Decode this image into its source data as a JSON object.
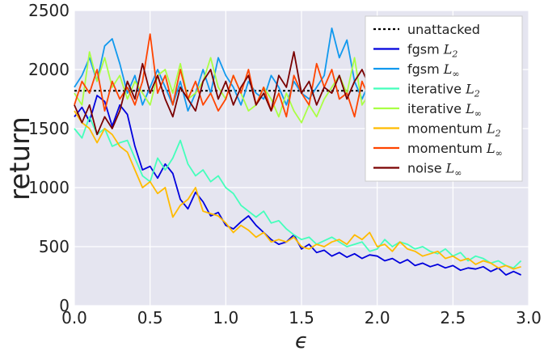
{
  "chart_data": {
    "type": "line",
    "xlabel": "ϵ",
    "ylabel": "return",
    "xlim": [
      0.0,
      3.0
    ],
    "ylim": [
      0,
      2500
    ],
    "xticks": [
      "0.0",
      "0.5",
      "1.0",
      "1.5",
      "2.0",
      "2.5",
      "3.0"
    ],
    "yticks": [
      "0",
      "500",
      "1000",
      "1500",
      "2000",
      "2500"
    ],
    "grid": true,
    "legend_position": "top-right",
    "series": [
      {
        "name": "unattacked",
        "name_main": "unattacked",
        "name_sub": "",
        "name_subsub": "",
        "color": "#000000",
        "style": "dotted",
        "x": [
          0.0,
          1.95
        ],
        "y": [
          1820,
          1820
        ]
      },
      {
        "name": "fgsm L2",
        "name_main": "fgsm ",
        "name_sub": "L",
        "name_subsub": "2",
        "color": "#0000dd",
        "style": "solid",
        "x": [
          0.0,
          0.05,
          0.1,
          0.15,
          0.2,
          0.25,
          0.3,
          0.35,
          0.4,
          0.45,
          0.5,
          0.55,
          0.6,
          0.65,
          0.7,
          0.75,
          0.8,
          0.85,
          0.9,
          0.95,
          1.0,
          1.05,
          1.1,
          1.15,
          1.2,
          1.25,
          1.3,
          1.35,
          1.4,
          1.45,
          1.5,
          1.55,
          1.6,
          1.65,
          1.7,
          1.75,
          1.8,
          1.85,
          1.9,
          1.95,
          2.0,
          2.05,
          2.1,
          2.15,
          2.2,
          2.25,
          2.3,
          2.35,
          2.4,
          2.45,
          2.5,
          2.55,
          2.6,
          2.65,
          2.7,
          2.75,
          2.8,
          2.85,
          2.9,
          2.95
        ],
        "y": [
          1600,
          1680,
          1560,
          1780,
          1730,
          1520,
          1700,
          1620,
          1350,
          1150,
          1180,
          1080,
          1200,
          1120,
          900,
          820,
          960,
          880,
          760,
          790,
          680,
          650,
          710,
          760,
          680,
          620,
          560,
          520,
          540,
          600,
          480,
          520,
          450,
          470,
          420,
          450,
          410,
          440,
          400,
          430,
          420,
          380,
          400,
          360,
          390,
          340,
          360,
          330,
          350,
          320,
          340,
          300,
          320,
          310,
          330,
          290,
          320,
          260,
          290,
          260
        ]
      },
      {
        "name": "fgsm L∞",
        "name_main": "fgsm ",
        "name_sub": "L",
        "name_subsub": "∞",
        "color": "#1199ee",
        "style": "solid",
        "x": [
          0.0,
          0.05,
          0.1,
          0.15,
          0.2,
          0.25,
          0.3,
          0.35,
          0.4,
          0.45,
          0.5,
          0.55,
          0.6,
          0.65,
          0.7,
          0.75,
          0.8,
          0.85,
          0.9,
          0.95,
          1.0,
          1.05,
          1.1,
          1.15,
          1.2,
          1.25,
          1.3,
          1.35,
          1.4,
          1.45,
          1.5,
          1.55,
          1.6,
          1.65,
          1.7,
          1.75,
          1.8,
          1.85,
          1.9,
          1.95
        ],
        "y": [
          1850,
          1950,
          2100,
          1900,
          2200,
          2260,
          2050,
          1800,
          1950,
          1700,
          1850,
          2000,
          1850,
          1700,
          1900,
          1650,
          1800,
          2000,
          1800,
          2100,
          1950,
          1850,
          1700,
          1900,
          1800,
          1750,
          1950,
          1850,
          1700,
          1900,
          1800,
          1750,
          1850,
          1950,
          2350,
          2100,
          2250,
          1900,
          1750,
          1900
        ]
      },
      {
        "name": "iterative L2",
        "name_main": "iterative ",
        "name_sub": "L",
        "name_subsub": "2",
        "color": "#44ffbb",
        "style": "solid",
        "x": [
          0.0,
          0.05,
          0.1,
          0.15,
          0.2,
          0.25,
          0.3,
          0.35,
          0.4,
          0.45,
          0.5,
          0.55,
          0.6,
          0.65,
          0.7,
          0.75,
          0.8,
          0.85,
          0.9,
          0.95,
          1.0,
          1.05,
          1.1,
          1.15,
          1.2,
          1.25,
          1.3,
          1.35,
          1.4,
          1.45,
          1.5,
          1.55,
          1.6,
          1.65,
          1.7,
          1.75,
          1.8,
          1.85,
          1.9,
          1.95,
          2.0,
          2.05,
          2.1,
          2.15,
          2.2,
          2.25,
          2.3,
          2.35,
          2.4,
          2.45,
          2.5,
          2.55,
          2.6,
          2.65,
          2.7,
          2.75,
          2.8,
          2.85,
          2.9,
          2.95
        ],
        "y": [
          1500,
          1420,
          1600,
          1450,
          1500,
          1350,
          1380,
          1400,
          1250,
          1100,
          1050,
          1250,
          1150,
          1250,
          1400,
          1200,
          1100,
          1150,
          1050,
          1100,
          1000,
          950,
          850,
          800,
          750,
          800,
          700,
          720,
          650,
          600,
          560,
          580,
          520,
          550,
          580,
          540,
          500,
          520,
          540,
          460,
          480,
          560,
          500,
          540,
          520,
          480,
          500,
          460,
          440,
          480,
          420,
          450,
          380,
          420,
          400,
          360,
          380,
          340,
          320,
          380
        ]
      },
      {
        "name": "iterative L∞",
        "name_main": "iterative ",
        "name_sub": "L",
        "name_subsub": "∞",
        "color": "#aaff44",
        "style": "solid",
        "x": [
          0.0,
          0.05,
          0.1,
          0.15,
          0.2,
          0.25,
          0.3,
          0.35,
          0.4,
          0.45,
          0.5,
          0.55,
          0.6,
          0.65,
          0.7,
          0.75,
          0.8,
          0.85,
          0.9,
          0.95,
          1.0,
          1.05,
          1.1,
          1.15,
          1.2,
          1.25,
          1.3,
          1.35,
          1.4,
          1.45,
          1.5,
          1.55,
          1.6,
          1.65,
          1.7,
          1.75,
          1.8,
          1.85,
          1.9,
          1.95
        ],
        "y": [
          1800,
          1700,
          2150,
          1900,
          2100,
          1850,
          1950,
          1750,
          1900,
          1800,
          1700,
          1950,
          2000,
          1800,
          2050,
          1750,
          1800,
          1900,
          2100,
          1850,
          1750,
          1950,
          1800,
          1650,
          1700,
          1850,
          1750,
          1600,
          1800,
          1650,
          1550,
          1700,
          1600,
          1750,
          1850,
          1950,
          1800,
          2100,
          1700,
          1800
        ]
      },
      {
        "name": "momentum L2",
        "name_main": "momentum ",
        "name_sub": "L",
        "name_subsub": "2",
        "color": "#ffbb00",
        "style": "solid",
        "x": [
          0.0,
          0.05,
          0.1,
          0.15,
          0.2,
          0.25,
          0.3,
          0.35,
          0.4,
          0.45,
          0.5,
          0.55,
          0.6,
          0.65,
          0.7,
          0.75,
          0.8,
          0.85,
          0.9,
          0.95,
          1.0,
          1.05,
          1.1,
          1.15,
          1.2,
          1.25,
          1.3,
          1.35,
          1.4,
          1.45,
          1.5,
          1.55,
          1.6,
          1.65,
          1.7,
          1.75,
          1.8,
          1.85,
          1.9,
          1.95,
          2.0,
          2.05,
          2.1,
          2.15,
          2.2,
          2.25,
          2.3,
          2.35,
          2.4,
          2.45,
          2.5,
          2.55,
          2.6,
          2.65,
          2.7,
          2.75,
          2.8,
          2.85,
          2.9,
          2.95
        ],
        "y": [
          1650,
          1550,
          1500,
          1380,
          1500,
          1450,
          1350,
          1300,
          1150,
          1000,
          1050,
          950,
          1000,
          750,
          850,
          900,
          1000,
          800,
          780,
          760,
          700,
          620,
          680,
          640,
          580,
          620,
          540,
          560,
          540,
          580,
          500,
          480,
          520,
          500,
          540,
          560,
          520,
          600,
          560,
          620,
          500,
          520,
          460,
          540,
          480,
          460,
          420,
          440,
          460,
          400,
          420,
          380,
          400,
          350,
          380,
          360,
          320,
          340,
          310,
          330
        ]
      },
      {
        "name": "momentum L∞",
        "name_main": "momentum ",
        "name_sub": "L",
        "name_subsub": "∞",
        "color": "#ff4400",
        "style": "solid",
        "x": [
          0.0,
          0.05,
          0.1,
          0.15,
          0.2,
          0.25,
          0.3,
          0.35,
          0.4,
          0.45,
          0.5,
          0.55,
          0.6,
          0.65,
          0.7,
          0.75,
          0.8,
          0.85,
          0.9,
          0.95,
          1.0,
          1.05,
          1.1,
          1.15,
          1.2,
          1.25,
          1.3,
          1.35,
          1.4,
          1.45,
          1.5,
          1.55,
          1.6,
          1.65,
          1.7,
          1.75,
          1.8,
          1.85,
          1.9,
          1.95
        ],
        "y": [
          1700,
          1900,
          1800,
          2000,
          1650,
          1900,
          1750,
          1850,
          1700,
          1900,
          2300,
          1800,
          1950,
          1700,
          2000,
          1750,
          1900,
          1700,
          1800,
          1650,
          1750,
          1950,
          1800,
          2000,
          1700,
          1850,
          1650,
          1800,
          1600,
          1950,
          1800,
          1700,
          2050,
          1850,
          2000,
          1750,
          1800,
          1600,
          1900,
          1750
        ]
      },
      {
        "name": "noise L∞",
        "name_main": "noise ",
        "name_sub": "L",
        "name_subsub": "∞",
        "color": "#7a0000",
        "style": "solid",
        "x": [
          0.0,
          0.05,
          0.1,
          0.15,
          0.2,
          0.25,
          0.3,
          0.35,
          0.4,
          0.45,
          0.5,
          0.55,
          0.6,
          0.65,
          0.7,
          0.75,
          0.8,
          0.85,
          0.9,
          0.95,
          1.0,
          1.05,
          1.1,
          1.15,
          1.2,
          1.25,
          1.3,
          1.35,
          1.4,
          1.45,
          1.5,
          1.55,
          1.6,
          1.65,
          1.7,
          1.75,
          1.8,
          1.85,
          1.9,
          1.95
        ],
        "y": [
          1700,
          1550,
          1700,
          1450,
          1600,
          1500,
          1650,
          1900,
          1750,
          2050,
          1800,
          1950,
          1750,
          1600,
          1850,
          1750,
          1650,
          1900,
          2000,
          1750,
          1900,
          1700,
          1850,
          1950,
          1700,
          1800,
          1650,
          1950,
          1850,
          2150,
          1800,
          1900,
          1700,
          1850,
          1800,
          1950,
          1750,
          1900,
          2000,
          1850
        ]
      }
    ]
  }
}
